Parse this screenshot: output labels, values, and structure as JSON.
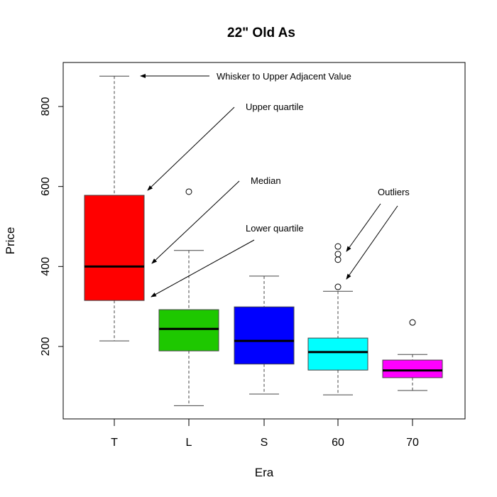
{
  "chart_data": {
    "type": "boxplot",
    "title": "22\" Old As",
    "xlabel": "Era",
    "ylabel": "Price",
    "categories": [
      "T",
      "L",
      "S",
      "60",
      "70"
    ],
    "yticks": [
      200,
      400,
      600,
      800
    ],
    "ylim": [
      19,
      910
    ],
    "grid": false,
    "legend": null,
    "series": [
      {
        "name": "T",
        "color": "#ff0000",
        "lower_whisker": 214,
        "q1": 315,
        "median": 400,
        "q3": 578,
        "upper_whisker": 876,
        "outliers": []
      },
      {
        "name": "L",
        "color": "#1ec800",
        "lower_whisker": 52,
        "q1": 189,
        "median": 244,
        "q3": 292,
        "upper_whisker": 440,
        "outliers": [
          587
        ]
      },
      {
        "name": "S",
        "color": "#0000ff",
        "lower_whisker": 81,
        "q1": 156,
        "median": 214,
        "q3": 299,
        "upper_whisker": 376,
        "outliers": []
      },
      {
        "name": "60",
        "color": "#00ffff",
        "lower_whisker": 79,
        "q1": 141,
        "median": 186,
        "q3": 221,
        "upper_whisker": 338,
        "outliers": [
          349,
          417,
          431,
          450
        ]
      },
      {
        "name": "70",
        "color": "#ff00ff",
        "lower_whisker": 90,
        "q1": 122,
        "median": 140,
        "q3": 166,
        "upper_whisker": 180,
        "outliers": [
          260
        ]
      }
    ],
    "annotations": [
      {
        "text": "Whisker to Upper Adjacent Value",
        "x": 305,
        "y": 112,
        "arrows": [
          [
            295,
            107,
            198,
            107
          ]
        ]
      },
      {
        "text": "Upper quartile",
        "x": 346,
        "y": 155,
        "arrows": [
          [
            330,
            151,
            208,
            268
          ]
        ]
      },
      {
        "text": "Median",
        "x": 353,
        "y": 259,
        "arrows": [
          [
            337,
            255,
            214,
            371
          ]
        ]
      },
      {
        "text": "Lower quartile",
        "x": 346,
        "y": 326,
        "arrows": [
          [
            358,
            338,
            213,
            418
          ]
        ]
      },
      {
        "text": "Outliers",
        "x": 532,
        "y": 275,
        "arrows": [
          [
            536,
            287,
            488,
            354
          ],
          [
            560,
            290,
            488,
            393
          ]
        ]
      }
    ]
  }
}
